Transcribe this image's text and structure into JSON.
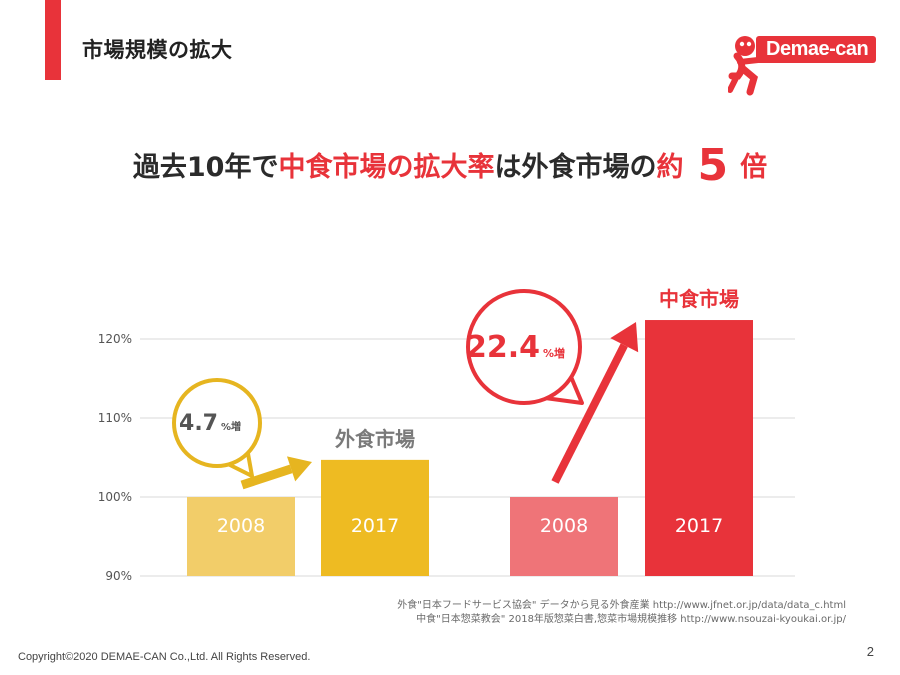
{
  "slide": {
    "title": "市場規模の拡大",
    "page_number": "2"
  },
  "logo": {
    "text": "Demae-can"
  },
  "headline": {
    "part1": "過去10年で",
    "part2": "中食市場の拡大率",
    "part3": "は外食市場の",
    "part4": "約",
    "multiplier": "5",
    "part5": "倍"
  },
  "colors": {
    "accent": "#e8333a",
    "gaishoku_2008": "#f2cd69",
    "gaishoku_2017": "#eebb22",
    "nakashoku_2008": "#ef7478",
    "nakashoku_2017": "#e8333a",
    "gaishoku_callout": "#e6b520",
    "gaishoku_label": "#7a7a7a"
  },
  "chart_data": {
    "type": "bar",
    "title": "",
    "xlabel": "",
    "ylabel": "",
    "ylim": [
      90,
      125
    ],
    "yticks": [
      "90%",
      "100%",
      "110%",
      "120%"
    ],
    "ytick_values": [
      90,
      100,
      110,
      120
    ],
    "groups": [
      {
        "name": "外食市場",
        "bars": [
          {
            "label": "2008",
            "value": 100
          },
          {
            "label": "2017",
            "value": 104.7
          }
        ],
        "callout": {
          "value": "4.7",
          "unit": "%増"
        }
      },
      {
        "name": "中食市場",
        "bars": [
          {
            "label": "2008",
            "value": 100
          },
          {
            "label": "2017",
            "value": 122.4
          }
        ],
        "callout": {
          "value": "22.4",
          "unit": "%増"
        }
      }
    ]
  },
  "sources": {
    "line1": "外食\"日本フードサービス協会\" データから見る外食産業  http://www.jfnet.or.jp/data/data_c.html",
    "line2": "中食\"日本惣菜教会\" 2018年版惣菜白書,惣菜市場規模推移  http://www.nsouzai-kyoukai.or.jp/"
  },
  "footer": {
    "copyright": "Copyright©2020 DEMAE-CAN Co.,Ltd. All Rights Reserved."
  }
}
